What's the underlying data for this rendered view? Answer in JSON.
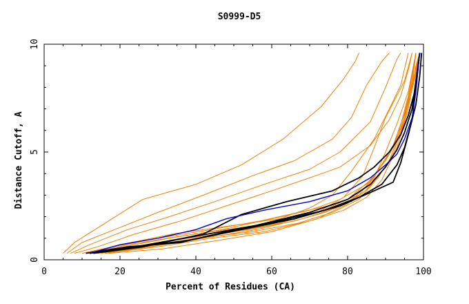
{
  "chart_data": {
    "type": "line",
    "title": "S0999-D5",
    "xlabel": "Percent of Residues (CA)",
    "ylabel": "Distance Cutoff, A",
    "xlim": [
      0,
      100
    ],
    "ylim": [
      0,
      10
    ],
    "x_ticks": [
      "0",
      "20",
      "40",
      "60",
      "80",
      "100"
    ],
    "y_ticks": [
      "0",
      "5",
      "10"
    ],
    "grid": false,
    "legend": "none",
    "colors": {
      "orange": "#f08000",
      "black": "#000000",
      "blue": "#0000d0",
      "axis": "#000000"
    },
    "series": [
      {
        "color": "orange",
        "points": [
          [
            5,
            0.3
          ],
          [
            8,
            0.8
          ],
          [
            17,
            1.8
          ],
          [
            26,
            2.8
          ],
          [
            40,
            3.5
          ],
          [
            52,
            4.4
          ],
          [
            63,
            5.6
          ],
          [
            73,
            7.1
          ],
          [
            79,
            8.4
          ],
          [
            82,
            9.2
          ],
          [
            83,
            9.6
          ]
        ]
      },
      {
        "color": "orange",
        "points": [
          [
            6,
            0.3
          ],
          [
            10,
            0.8
          ],
          [
            20,
            1.5
          ],
          [
            30,
            2.2
          ],
          [
            42,
            3.0
          ],
          [
            55,
            3.9
          ],
          [
            66,
            4.6
          ],
          [
            76,
            5.6
          ],
          [
            81,
            6.6
          ],
          [
            85,
            8.1
          ],
          [
            89,
            9.2
          ],
          [
            91,
            9.6
          ]
        ]
      },
      {
        "color": "orange",
        "points": [
          [
            7,
            0.3
          ],
          [
            12,
            0.7
          ],
          [
            22,
            1.4
          ],
          [
            33,
            2.0
          ],
          [
            45,
            2.7
          ],
          [
            58,
            3.5
          ],
          [
            70,
            4.2
          ],
          [
            78,
            5.0
          ],
          [
            86,
            6.4
          ],
          [
            90,
            8.0
          ],
          [
            93,
            9.3
          ],
          [
            94,
            9.6
          ]
        ]
      },
      {
        "color": "orange",
        "points": [
          [
            8,
            0.3
          ],
          [
            14,
            0.6
          ],
          [
            24,
            1.2
          ],
          [
            36,
            1.8
          ],
          [
            48,
            2.5
          ],
          [
            60,
            3.2
          ],
          [
            70,
            3.8
          ],
          [
            78,
            4.3
          ],
          [
            86,
            5.3
          ],
          [
            91,
            6.5
          ],
          [
            94,
            7.6
          ],
          [
            96,
            8.8
          ],
          [
            97,
            9.6
          ]
        ]
      },
      {
        "color": "orange",
        "points": [
          [
            11,
            0.3
          ],
          [
            20,
            0.7
          ],
          [
            34,
            1.2
          ],
          [
            50,
            1.6
          ],
          [
            62,
            1.9
          ],
          [
            70,
            2.4
          ],
          [
            76,
            3.0
          ],
          [
            81,
            4.1
          ],
          [
            87,
            5.6
          ],
          [
            91,
            7.0
          ],
          [
            94,
            8.1
          ],
          [
            96,
            9.6
          ]
        ]
      },
      {
        "color": "orange",
        "points": [
          [
            12,
            0.3
          ],
          [
            22,
            0.7
          ],
          [
            36,
            1.1
          ],
          [
            52,
            1.5
          ],
          [
            64,
            1.8
          ],
          [
            72,
            2.2
          ],
          [
            79,
            2.9
          ],
          [
            84,
            3.9
          ],
          [
            87,
            5.2
          ],
          [
            90,
            6.6
          ],
          [
            95,
            8.3
          ],
          [
            97,
            9.6
          ]
        ]
      },
      {
        "color": "orange",
        "points": [
          [
            13,
            0.3
          ],
          [
            24,
            0.6
          ],
          [
            38,
            1.0
          ],
          [
            54,
            1.4
          ],
          [
            66,
            1.8
          ],
          [
            74,
            2.2
          ],
          [
            81,
            2.7
          ],
          [
            86,
            3.4
          ],
          [
            90,
            5.0
          ],
          [
            93,
            6.3
          ],
          [
            96,
            7.8
          ],
          [
            98,
            9.6
          ]
        ]
      },
      {
        "color": "orange",
        "points": [
          [
            14,
            0.3
          ],
          [
            27,
            0.6
          ],
          [
            40,
            1.0
          ],
          [
            55,
            1.3
          ],
          [
            67,
            1.7
          ],
          [
            76,
            2.2
          ],
          [
            83,
            2.8
          ],
          [
            87,
            3.6
          ],
          [
            91,
            4.6
          ],
          [
            94,
            6.0
          ],
          [
            97,
            8.1
          ],
          [
            98,
            9.6
          ]
        ]
      },
      {
        "color": "orange",
        "points": [
          [
            15,
            0.3
          ],
          [
            28,
            0.6
          ],
          [
            42,
            1.0
          ],
          [
            56,
            1.4
          ],
          [
            68,
            1.9
          ],
          [
            77,
            2.4
          ],
          [
            84,
            3.1
          ],
          [
            88,
            3.8
          ],
          [
            92,
            4.9
          ],
          [
            95,
            6.5
          ],
          [
            97,
            8.4
          ],
          [
            98,
            9.6
          ]
        ]
      },
      {
        "color": "orange",
        "points": [
          [
            16,
            0.3
          ],
          [
            30,
            0.6
          ],
          [
            44,
            1.0
          ],
          [
            58,
            1.3
          ],
          [
            70,
            1.8
          ],
          [
            79,
            2.3
          ],
          [
            85,
            2.9
          ],
          [
            89,
            3.7
          ],
          [
            93,
            5.2
          ],
          [
            96,
            7.0
          ],
          [
            98,
            9.0
          ],
          [
            99,
            9.6
          ]
        ]
      },
      {
        "color": "orange",
        "points": [
          [
            17,
            0.3
          ],
          [
            31,
            0.5
          ],
          [
            46,
            0.9
          ],
          [
            60,
            1.3
          ],
          [
            72,
            1.9
          ],
          [
            80,
            2.6
          ],
          [
            86,
            3.6
          ],
          [
            90,
            4.7
          ],
          [
            93,
            5.6
          ],
          [
            96,
            7.6
          ],
          [
            98,
            9.6
          ]
        ]
      },
      {
        "color": "orange",
        "points": [
          [
            10,
            0.3
          ],
          [
            18,
            0.6
          ],
          [
            30,
            1.0
          ],
          [
            44,
            1.4
          ],
          [
            57,
            1.8
          ],
          [
            67,
            2.2
          ],
          [
            75,
            2.5
          ],
          [
            83,
            3.0
          ],
          [
            88,
            4.1
          ],
          [
            92,
            5.3
          ],
          [
            95,
            6.8
          ],
          [
            97,
            8.2
          ],
          [
            99,
            9.6
          ]
        ]
      },
      {
        "color": "orange",
        "points": [
          [
            12,
            0.3
          ],
          [
            21,
            0.6
          ],
          [
            33,
            1.0
          ],
          [
            47,
            1.4
          ],
          [
            60,
            1.9
          ],
          [
            70,
            2.3
          ],
          [
            78,
            2.8
          ],
          [
            85,
            3.5
          ],
          [
            90,
            4.6
          ],
          [
            94,
            5.8
          ],
          [
            96,
            7.2
          ],
          [
            98,
            8.6
          ],
          [
            99,
            9.6
          ]
        ]
      },
      {
        "color": "orange",
        "points": [
          [
            14,
            0.3
          ],
          [
            25,
            0.6
          ],
          [
            37,
            0.9
          ],
          [
            50,
            1.3
          ],
          [
            62,
            1.7
          ],
          [
            72,
            2.2
          ],
          [
            80,
            2.8
          ],
          [
            86,
            3.7
          ],
          [
            91,
            4.9
          ],
          [
            94,
            6.1
          ],
          [
            97,
            7.9
          ],
          [
            99,
            9.6
          ]
        ]
      },
      {
        "color": "black",
        "points": [
          [
            11,
            0.3
          ],
          [
            22,
            0.6
          ],
          [
            36,
            0.8
          ],
          [
            48,
            1.3
          ],
          [
            62,
            1.8
          ],
          [
            74,
            2.3
          ],
          [
            83,
            2.9
          ],
          [
            89,
            3.5
          ],
          [
            93,
            4.4
          ],
          [
            95,
            5.2
          ],
          [
            97,
            6.5
          ],
          [
            98,
            8.0
          ],
          [
            99,
            9.6
          ]
        ]
      },
      {
        "color": "black",
        "points": [
          [
            12,
            0.3
          ],
          [
            24,
            0.6
          ],
          [
            40,
            1.1
          ],
          [
            56,
            1.6
          ],
          [
            70,
            2.2
          ],
          [
            80,
            2.8
          ],
          [
            86,
            3.5
          ],
          [
            90,
            4.3
          ],
          [
            93,
            5.1
          ],
          [
            95,
            5.9
          ],
          [
            97,
            7.0
          ],
          [
            98,
            8.3
          ],
          [
            99,
            9.6
          ]
        ]
      },
      {
        "color": "black",
        "points": [
          [
            13,
            0.3
          ],
          [
            26,
            0.6
          ],
          [
            42,
            1.2
          ],
          [
            52,
            2.1
          ],
          [
            64,
            2.7
          ],
          [
            76,
            3.2
          ],
          [
            83,
            3.8
          ],
          [
            87,
            4.3
          ],
          [
            91,
            5.0
          ],
          [
            94,
            5.8
          ],
          [
            96,
            6.7
          ],
          [
            98,
            8.0
          ],
          [
            99,
            9.6
          ]
        ]
      },
      {
        "color": "black",
        "points": [
          [
            12,
            0.3
          ],
          [
            24,
            0.6
          ],
          [
            38,
            0.9
          ],
          [
            52,
            1.4
          ],
          [
            66,
            1.9
          ],
          [
            78,
            2.5
          ],
          [
            87,
            3.2
          ],
          [
            92,
            3.6
          ],
          [
            94,
            4.5
          ],
          [
            96,
            5.8
          ],
          [
            98,
            7.2
          ],
          [
            99,
            8.5
          ],
          [
            99.5,
            9.6
          ]
        ]
      },
      {
        "color": "blue",
        "points": [
          [
            12,
            0.3
          ],
          [
            20,
            0.7
          ],
          [
            30,
            1.0
          ],
          [
            40,
            1.4
          ],
          [
            48,
            1.9
          ],
          [
            58,
            2.3
          ],
          [
            70,
            2.7
          ],
          [
            80,
            3.2
          ],
          [
            86,
            3.8
          ],
          [
            90,
            4.4
          ],
          [
            93,
            4.9
          ],
          [
            95,
            5.6
          ],
          [
            97,
            6.6
          ],
          [
            98,
            7.8
          ],
          [
            99,
            9.6
          ]
        ]
      }
    ]
  }
}
